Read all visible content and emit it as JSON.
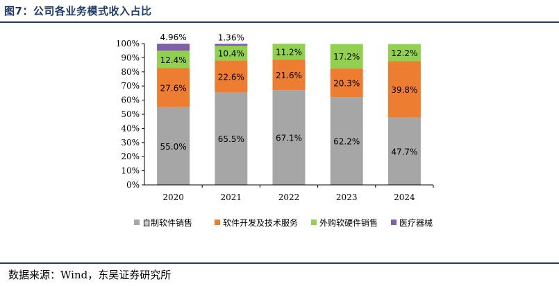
{
  "figure": {
    "title": "图7：公司各业务模式收入占比",
    "source": "数据来源：Wind，东吴证券研究所"
  },
  "chart_data": {
    "type": "bar",
    "stacked": true,
    "categories": [
      "2020",
      "2021",
      "2022",
      "2023",
      "2024"
    ],
    "series": [
      {
        "name": "自制软件销售",
        "color": "#a6a6a6",
        "values": [
          55.0,
          65.5,
          67.1,
          62.2,
          47.7
        ],
        "labels": [
          "55.0%",
          "65.5%",
          "67.1%",
          "62.2%",
          "47.7%"
        ]
      },
      {
        "name": "软件开发及技术服务",
        "color": "#ed7d31",
        "values": [
          27.6,
          22.6,
          21.6,
          20.3,
          39.8
        ],
        "labels": [
          "27.6%",
          "22.6%",
          "21.6%",
          "20.3%",
          "39.8%"
        ]
      },
      {
        "name": "外购软硬件销售",
        "color": "#92d050",
        "values": [
          12.4,
          10.4,
          11.2,
          17.2,
          12.2
        ],
        "labels": [
          "12.4%",
          "10.4%",
          "11.2%",
          "17.2%",
          "12.2%"
        ]
      },
      {
        "name": "医疗器械",
        "color": "#7f5fa6",
        "values": [
          4.96,
          1.36,
          0,
          0,
          0
        ],
        "labels": [
          "4.96%",
          "1.36%",
          "",
          "",
          ""
        ]
      }
    ],
    "yticks": [
      "0%",
      "10%",
      "20%",
      "30%",
      "40%",
      "50%",
      "60%",
      "70%",
      "80%",
      "90%",
      "100%"
    ],
    "ylim": [
      0,
      100
    ],
    "grid": false,
    "legend": "bottom"
  }
}
